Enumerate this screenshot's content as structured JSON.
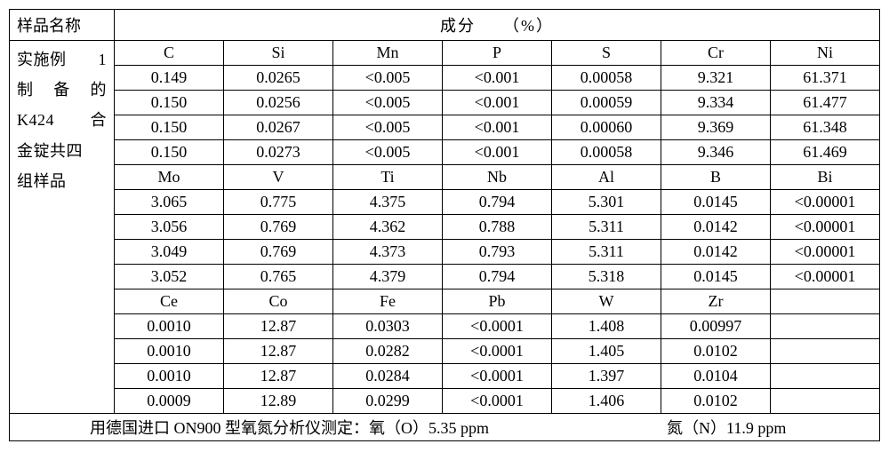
{
  "header": {
    "sample_name_label": "样品名称",
    "composition_label": "成分　　（%）"
  },
  "sample_name_lines": [
    [
      "实施例",
      "1"
    ],
    [
      "制",
      "备",
      "的"
    ],
    [
      "K424",
      "",
      "合"
    ],
    [
      "金锭共四",
      ""
    ],
    [
      "组样品",
      ""
    ]
  ],
  "elements_block1": [
    "C",
    "Si",
    "Mn",
    "P",
    "S",
    "Cr",
    "Ni"
  ],
  "rows_block1": [
    [
      "0.149",
      "0.0265",
      "<0.005",
      "<0.001",
      "0.00058",
      "9.321",
      "61.371"
    ],
    [
      "0.150",
      "0.0256",
      "<0.005",
      "<0.001",
      "0.00059",
      "9.334",
      "61.477"
    ],
    [
      "0.150",
      "0.0267",
      "<0.005",
      "<0.001",
      "0.00060",
      "9.369",
      "61.348"
    ],
    [
      "0.150",
      "0.0273",
      "<0.005",
      "<0.001",
      "0.00058",
      "9.346",
      "61.469"
    ]
  ],
  "elements_block2": [
    "Mo",
    "V",
    "Ti",
    "Nb",
    "Al",
    "B",
    "Bi"
  ],
  "rows_block2": [
    [
      "3.065",
      "0.775",
      "4.375",
      "0.794",
      "5.301",
      "0.0145",
      "<0.00001"
    ],
    [
      "3.056",
      "0.769",
      "4.362",
      "0.788",
      "5.311",
      "0.0142",
      "<0.00001"
    ],
    [
      "3.049",
      "0.769",
      "4.373",
      "0.793",
      "5.311",
      "0.0142",
      "<0.00001"
    ],
    [
      "3.052",
      "0.765",
      "4.379",
      "0.794",
      "5.318",
      "0.0145",
      "<0.00001"
    ]
  ],
  "elements_block3": [
    "Ce",
    "Co",
    "Fe",
    "Pb",
    "W",
    "Zr",
    ""
  ],
  "rows_block3": [
    [
      "0.0010",
      "12.87",
      "0.0303",
      "<0.0001",
      "1.408",
      "0.00997",
      ""
    ],
    [
      "0.0010",
      "12.87",
      "0.0282",
      "<0.0001",
      "1.405",
      "0.0102",
      ""
    ],
    [
      "0.0010",
      "12.87",
      "0.0284",
      "<0.0001",
      "1.397",
      "0.0104",
      ""
    ],
    [
      "0.0009",
      "12.89",
      "0.0299",
      "<0.0001",
      "1.406",
      "0.0102",
      ""
    ]
  ],
  "footer": {
    "prefix": "用德国进口 ON900 型氧氮分析仪测定：",
    "oxygen": "氧（O）5.35 ppm",
    "nitrogen": "氮（N）11.9 ppm"
  }
}
